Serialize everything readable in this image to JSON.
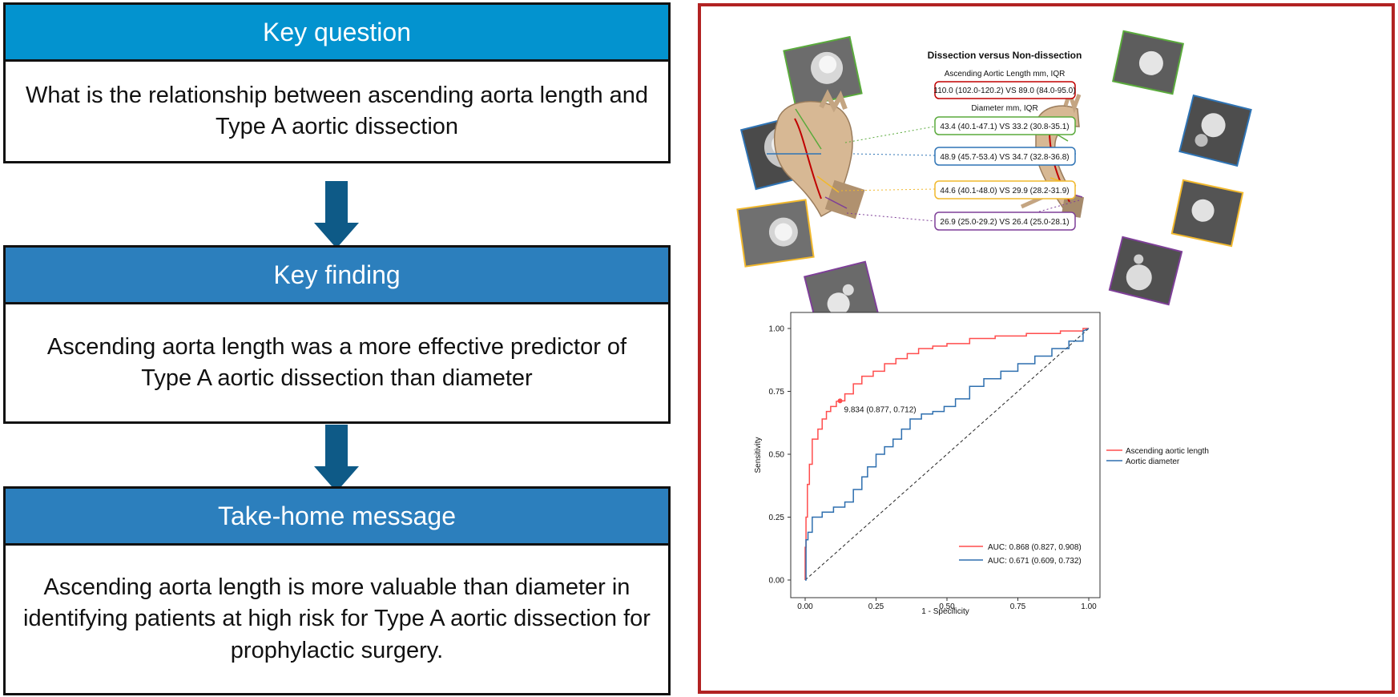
{
  "left": {
    "boxes": [
      {
        "header": "Key question",
        "header_color": "#0393cf",
        "body": "What is the relationship between ascending aorta length and Type A aortic dissection"
      },
      {
        "header": "Key finding",
        "header_color": "#2c7fbd",
        "body": "Ascending aorta length was a more effective predictor of Type A aortic dissection than diameter"
      },
      {
        "header": "Take-home message",
        "header_color": "#2c7fbd",
        "body": "Ascending aorta length is more valuable than diameter in identifying patients at high risk for Type A aortic dissection for prophylactic surgery."
      }
    ],
    "arrow_color": "#0e5a87"
  },
  "figure": {
    "title": "Dissection versus Non-dissection",
    "length_label": "Ascending Aortic Length mm, IQR",
    "length_value": "110.0 (102.0-120.2) VS 89.0 (84.0-95.0)",
    "diameter_label": "Diameter mm, IQR",
    "measurements": [
      {
        "text": "43.4 (40.1-47.1) VS 33.2 (30.8-35.1)",
        "color": "#5aaa3c"
      },
      {
        "text": "48.9 (45.7-53.4) VS 34.7 (32.8-36.8)",
        "color": "#2f74b5"
      },
      {
        "text": "44.6 (40.1-48.0) VS 29.9 (28.2-31.9)",
        "color": "#f1b82d"
      },
      {
        "text": "26.9 (25.0-29.2) VS 26.4 (25.0-28.1)",
        "color": "#7e3f98"
      }
    ],
    "length_color": "#c00000"
  },
  "chart_data": {
    "type": "line",
    "xlabel": "1 - Specificity",
    "ylabel": "Sensitivity",
    "xlim": [
      0,
      1
    ],
    "ylim": [
      0,
      1
    ],
    "x_ticks": [
      "0.00",
      "0.25",
      "0.50",
      "0.75",
      "1.00"
    ],
    "y_ticks": [
      "0.00",
      "0.25",
      "0.50",
      "0.75",
      "1.00"
    ],
    "grid": false,
    "legend_placement": "right",
    "series": [
      {
        "name": "Ascending aortic length",
        "color": "#ff4d4d",
        "x": [
          0,
          0,
          0.003,
          0.003,
          0.008,
          0.008,
          0.015,
          0.015,
          0.025,
          0.025,
          0.045,
          0.045,
          0.06,
          0.06,
          0.075,
          0.075,
          0.09,
          0.09,
          0.11,
          0.11,
          0.123,
          0.14,
          0.14,
          0.17,
          0.17,
          0.2,
          0.2,
          0.24,
          0.24,
          0.28,
          0.28,
          0.32,
          0.32,
          0.36,
          0.36,
          0.4,
          0.4,
          0.45,
          0.45,
          0.5,
          0.5,
          0.58,
          0.58,
          0.67,
          0.67,
          0.78,
          0.78,
          0.9,
          0.9,
          0.98,
          0.98,
          1
        ],
        "y": [
          0,
          0.13,
          0.13,
          0.25,
          0.25,
          0.38,
          0.38,
          0.46,
          0.46,
          0.56,
          0.56,
          0.6,
          0.6,
          0.64,
          0.64,
          0.67,
          0.67,
          0.69,
          0.69,
          0.71,
          0.712,
          0.712,
          0.74,
          0.74,
          0.78,
          0.78,
          0.81,
          0.81,
          0.83,
          0.83,
          0.86,
          0.86,
          0.88,
          0.88,
          0.9,
          0.9,
          0.92,
          0.92,
          0.93,
          0.93,
          0.94,
          0.94,
          0.96,
          0.96,
          0.97,
          0.97,
          0.98,
          0.98,
          0.99,
          0.99,
          1.0,
          1.0
        ]
      },
      {
        "name": "Aortic diameter",
        "color": "#2e6faf",
        "x": [
          0,
          0.003,
          0.003,
          0.01,
          0.01,
          0.025,
          0.025,
          0.06,
          0.06,
          0.1,
          0.1,
          0.14,
          0.14,
          0.17,
          0.17,
          0.2,
          0.2,
          0.22,
          0.22,
          0.25,
          0.25,
          0.28,
          0.28,
          0.31,
          0.31,
          0.34,
          0.34,
          0.37,
          0.37,
          0.41,
          0.41,
          0.45,
          0.45,
          0.49,
          0.49,
          0.53,
          0.53,
          0.58,
          0.58,
          0.63,
          0.63,
          0.69,
          0.69,
          0.75,
          0.75,
          0.81,
          0.81,
          0.87,
          0.87,
          0.93,
          0.93,
          0.98,
          0.98,
          1
        ],
        "y": [
          0,
          0,
          0.16,
          0.16,
          0.19,
          0.19,
          0.25,
          0.25,
          0.27,
          0.27,
          0.29,
          0.29,
          0.31,
          0.31,
          0.36,
          0.36,
          0.41,
          0.41,
          0.45,
          0.45,
          0.5,
          0.5,
          0.53,
          0.53,
          0.56,
          0.56,
          0.6,
          0.6,
          0.64,
          0.64,
          0.66,
          0.66,
          0.67,
          0.67,
          0.69,
          0.69,
          0.72,
          0.72,
          0.77,
          0.77,
          0.8,
          0.8,
          0.83,
          0.83,
          0.86,
          0.86,
          0.89,
          0.89,
          0.92,
          0.92,
          0.95,
          0.95,
          0.99,
          1.0
        ]
      }
    ],
    "reference_line": {
      "x": [
        0,
        1
      ],
      "y": [
        0,
        1
      ]
    },
    "marked_point": {
      "x": 0.123,
      "y": 0.712,
      "label": "9.834 (0.877, 0.712)"
    },
    "auc_legend": [
      {
        "text": "AUC: 0.868 (0.827, 0.908)",
        "color": "#ff4d4d"
      },
      {
        "text": "AUC: 0.671 (0.609, 0.732)",
        "color": "#2e6faf"
      }
    ]
  }
}
